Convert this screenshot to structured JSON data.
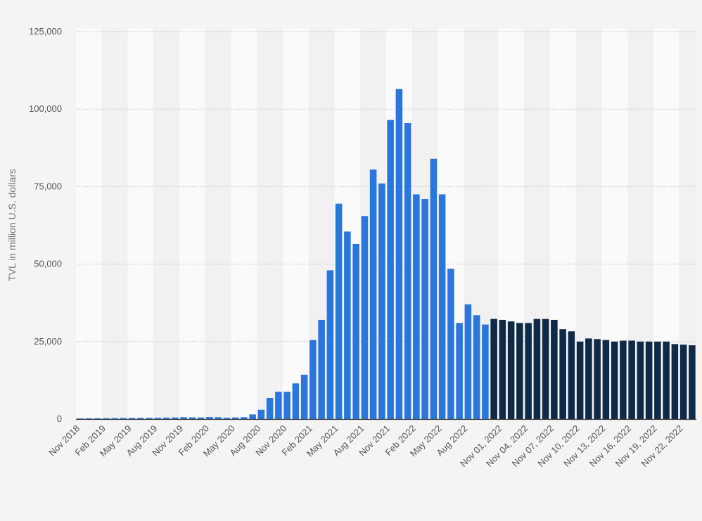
{
  "chart_data": {
    "type": "bar",
    "title": "",
    "xlabel": "",
    "ylabel": "TVL in million U.S. dollars",
    "ylim": [
      0,
      125000
    ],
    "yticks": [
      0,
      25000,
      50000,
      75000,
      100000,
      125000
    ],
    "ytick_labels": [
      "0",
      "25,000",
      "50,000",
      "75,000",
      "100,000",
      "125,000"
    ],
    "grid": true,
    "colors": {
      "monthly": "#2a76dd",
      "daily": "#0f2a47",
      "band": "#f1f1f1",
      "background": "#f4f4f4",
      "grid": "#c8c8c8"
    },
    "series": [
      {
        "period": "monthly",
        "categories": [
          "Nov 2018",
          "Dec 2018",
          "Jan 2019",
          "Feb 2019",
          "Mar 2019",
          "Apr 2019",
          "May 2019",
          "Jun 2019",
          "Jul 2019",
          "Aug 2019",
          "Sep 2019",
          "Oct 2019",
          "Nov 2019",
          "Dec 2019",
          "Jan 2020",
          "Feb 2020",
          "Mar 2020",
          "Apr 2020",
          "May 2020",
          "Jun 2020",
          "Jul 2020",
          "Aug 2020",
          "Sep 2020",
          "Oct 2020",
          "Nov 2020",
          "Dec 2020",
          "Jan 2021",
          "Feb 2021",
          "Mar 2021",
          "Apr 2021",
          "May 2021",
          "Jun 2021",
          "Jul 2021",
          "Aug 2021",
          "Sep 2021",
          "Oct 2021",
          "Nov 2021",
          "Dec 2021",
          "Jan 2022",
          "Feb 2022",
          "Mar 2022",
          "Apr 2022",
          "May 2022",
          "Jun 2022",
          "Jul 2022",
          "Aug 2022",
          "Sep 2022",
          "Oct 2022"
        ],
        "values": [
          200,
          220,
          250,
          270,
          300,
          320,
          340,
          360,
          380,
          400,
          450,
          500,
          600,
          550,
          500,
          650,
          600,
          400,
          500,
          600,
          1500,
          3000,
          6800,
          8800,
          8800,
          11500,
          14300,
          25500,
          32000,
          48000,
          69500,
          60500,
          56500,
          65500,
          80500,
          76000,
          96500,
          106500,
          95500,
          72500,
          71000,
          84000,
          72500,
          48500,
          31000,
          37000,
          33500,
          30500
        ],
        "labeled_ticks": [
          "Nov 2018",
          "Feb 2019",
          "May 2019",
          "Aug 2019",
          "Nov 2019",
          "Feb 2020",
          "May 2020",
          "Aug 2020",
          "Nov 2020",
          "Feb 2021",
          "May 2021",
          "Aug 2021",
          "Nov 2021",
          "Feb 2022",
          "May 2022",
          "Aug 2022"
        ]
      },
      {
        "period": "daily",
        "categories": [
          "Oct 31, 2022",
          "Nov 01, 2022",
          "Nov 02, 2022",
          "Nov 03, 2022",
          "Nov 04, 2022",
          "Nov 05, 2022",
          "Nov 06, 2022",
          "Nov 07, 2022",
          "Nov 08, 2022",
          "Nov 09, 2022",
          "Nov 10, 2022",
          "Nov 11, 2022",
          "Nov 12, 2022",
          "Nov 13, 2022",
          "Nov 14, 2022",
          "Nov 15, 2022",
          "Nov 16, 2022",
          "Nov 17, 2022",
          "Nov 18, 2022",
          "Nov 19, 2022",
          "Nov 20, 2022",
          "Nov 21, 2022",
          "Nov 22, 2022",
          "Nov 23, 2022"
        ],
        "values": [
          32300,
          32000,
          31500,
          31000,
          31000,
          32300,
          32300,
          32000,
          29000,
          28300,
          25000,
          26000,
          25800,
          25500,
          25000,
          25300,
          25300,
          25000,
          25000,
          25000,
          25000,
          24200,
          24000,
          23800
        ],
        "labeled_ticks": [
          "Nov 01, 2022",
          "Nov 04, 2022",
          "Nov 07, 2022",
          "Nov 10, 2022",
          "Nov 13, 2022",
          "Nov 16, 2022",
          "Nov 19, 2022",
          "Nov 22, 2022"
        ]
      }
    ]
  }
}
